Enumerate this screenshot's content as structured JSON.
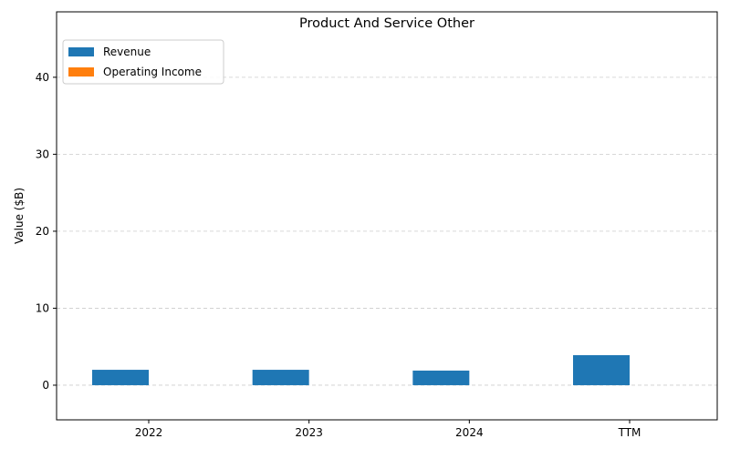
{
  "chart_data": {
    "type": "bar",
    "title": "Product And Service Other",
    "xlabel": "",
    "ylabel": "Value ($B)",
    "categories": [
      "2022",
      "2023",
      "2024",
      "TTM"
    ],
    "series": [
      {
        "name": "Revenue",
        "values": [
          2.0,
          2.0,
          1.9,
          3.9
        ],
        "color": "#1f77b4"
      },
      {
        "name": "Operating Income",
        "values": [
          0,
          0,
          0,
          0
        ],
        "color": "#ff7f0e"
      }
    ],
    "ylim": [
      -4.5,
      48.5
    ],
    "yticks": [
      0,
      10,
      20,
      30,
      40
    ],
    "grid": true,
    "legend_position": "top-left"
  }
}
